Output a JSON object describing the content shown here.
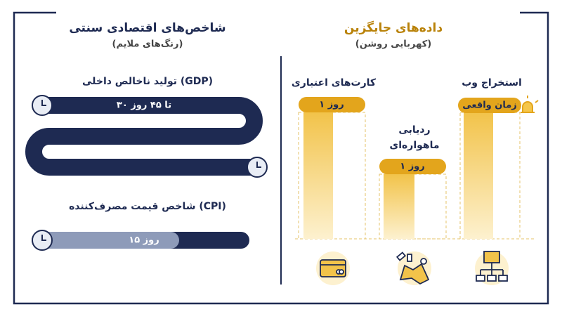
{
  "left": {
    "title": "شاخص‌های اقتصادی سنتی",
    "subtitle": "(رنگ‌های ملایم)",
    "gdp": {
      "label": "تولید ناخالص داخلی (GDP)",
      "bar_label": "۳۰ تا ۴۵ روز"
    },
    "cpi": {
      "label": "شاخص قیمت مصرف‌کننده (CPI)",
      "bar_label": "۱۵ روز"
    }
  },
  "right": {
    "title": "داده‌های جایگزین",
    "subtitle": "(کهربایی روشن)",
    "columns": [
      {
        "label": "کارت‌های اعتباری",
        "badge": "۱ روز"
      },
      {
        "label": [
          "ردیابی",
          "ماهواره‌ای"
        ],
        "badge": "۱ روز"
      },
      {
        "label": "استخراج وب",
        "badge": "زمان واقعی"
      }
    ]
  }
}
